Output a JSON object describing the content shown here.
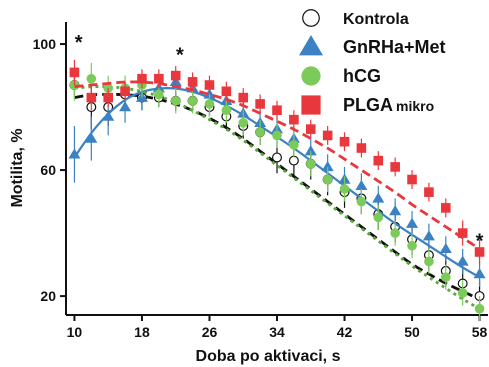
{
  "chart_data": {
    "type": "line",
    "xlabel": "Doba po aktivaci, s",
    "ylabel": "Motilita, %",
    "xlim": [
      9,
      59
    ],
    "ylim": [
      14,
      107
    ],
    "xticks": [
      10,
      18,
      26,
      34,
      42,
      50,
      58
    ],
    "yticks": [
      20,
      60,
      100
    ],
    "legend_position": "top-right",
    "significance": [
      {
        "x": 10.5,
        "y": 101,
        "label": "*"
      },
      {
        "x": 22.5,
        "y": 97,
        "label": "*"
      },
      {
        "x": 58,
        "y": 38,
        "label": "*"
      }
    ],
    "x": [
      10,
      12,
      14,
      16,
      18,
      20,
      22,
      24,
      26,
      28,
      30,
      32,
      34,
      36,
      38,
      40,
      42,
      44,
      46,
      48,
      50,
      52,
      54,
      56,
      58
    ],
    "series": [
      {
        "name": "Kontrola",
        "marker": "circle-open",
        "color": "#111111",
        "line": "dashed",
        "values": [
          87,
          80,
          80,
          84,
          83,
          83,
          82,
          82,
          80,
          77,
          74,
          72,
          64,
          63,
          62,
          57,
          53,
          51,
          46,
          42,
          38,
          33,
          28,
          24,
          20
        ],
        "errors": [
          4,
          7,
          6,
          4,
          4,
          3,
          3,
          3,
          3,
          4,
          4,
          4,
          5,
          5,
          5,
          5,
          5,
          5,
          5,
          5,
          5,
          5,
          5,
          5,
          5
        ],
        "fit": [
          83,
          84,
          84,
          84,
          83.5,
          82.5,
          81,
          79,
          76.5,
          73.5,
          70,
          66,
          62,
          58,
          54,
          50,
          46,
          42,
          38,
          34,
          30,
          27,
          24,
          21.5,
          19
        ]
      },
      {
        "name": "GnRHa+Met",
        "marker": "triangle",
        "color": "#3b82c4",
        "line": "solid",
        "values": [
          65,
          70,
          77,
          80,
          83,
          86,
          88,
          86,
          84,
          82,
          78,
          75,
          73,
          70,
          66,
          61,
          57,
          55,
          51,
          47,
          43,
          39,
          35,
          31,
          27
        ],
        "errors": [
          9,
          7,
          6,
          5,
          4,
          3,
          3,
          3,
          3,
          3,
          4,
          4,
          4,
          4,
          4,
          4,
          4,
          4,
          4,
          4,
          4,
          4,
          4,
          4,
          4
        ],
        "fit": [
          64,
          72,
          78,
          82.5,
          85,
          86,
          86,
          85,
          83,
          80.5,
          77.5,
          74,
          70.5,
          67,
          63,
          59,
          55,
          51,
          47,
          43,
          39.5,
          36,
          32.5,
          29,
          26
        ]
      },
      {
        "name": "hCG",
        "marker": "circle-filled",
        "color": "#7ccb5a",
        "line": "dotted",
        "values": [
          87,
          89,
          86,
          86,
          87,
          84,
          82,
          82,
          81,
          79,
          75,
          72,
          71,
          68,
          62,
          57,
          54,
          50,
          45,
          40,
          36,
          31,
          26,
          21,
          16
        ],
        "errors": [
          5,
          5,
          4,
          4,
          4,
          4,
          4,
          4,
          4,
          4,
          4,
          4,
          4,
          4,
          4,
          4,
          4,
          4,
          4,
          4,
          4,
          4,
          4,
          4,
          4
        ],
        "fit": [
          86,
          86.5,
          86.5,
          86,
          85,
          83.5,
          81.5,
          79,
          76,
          73,
          69.5,
          65.5,
          61.5,
          57.5,
          53.5,
          49.5,
          45.5,
          41.5,
          37.5,
          33.5,
          29.5,
          26,
          22.5,
          19,
          16
        ]
      },
      {
        "name": "PLGA",
        "name_suffix": "mikro",
        "marker": "square",
        "color": "#e8383d",
        "line": "dashed",
        "values": [
          91,
          83,
          83,
          85,
          89,
          89,
          90,
          88,
          87,
          85,
          83,
          81,
          79,
          76,
          73,
          71,
          69,
          67,
          63,
          61,
          57,
          53,
          48,
          40,
          34
        ],
        "errors": [
          4,
          4,
          3,
          3,
          3,
          3,
          3,
          3,
          3,
          3,
          3,
          3,
          3,
          3,
          3,
          3,
          3,
          3,
          3,
          3,
          3,
          3,
          3,
          4,
          4
        ],
        "fit": [
          86.5,
          87,
          87.5,
          88,
          88,
          87.5,
          86.5,
          85.5,
          84,
          82.5,
          80.5,
          78,
          75.5,
          73,
          70,
          67,
          63.5,
          60,
          56.5,
          53,
          49,
          45.5,
          42,
          38.5,
          35
        ]
      }
    ]
  },
  "legend": {
    "items": [
      {
        "label": "Kontrola",
        "sub": "",
        "marker": "circle-open",
        "color": "#111111"
      },
      {
        "label": "GnRHa+Met",
        "sub": "",
        "marker": "triangle",
        "color": "#3b82c4"
      },
      {
        "label": "hCG",
        "sub": "",
        "marker": "circle-filled",
        "color": "#7ccb5a"
      },
      {
        "label": "PLGA",
        "sub": "mikro",
        "marker": "square",
        "color": "#e8383d"
      }
    ]
  }
}
